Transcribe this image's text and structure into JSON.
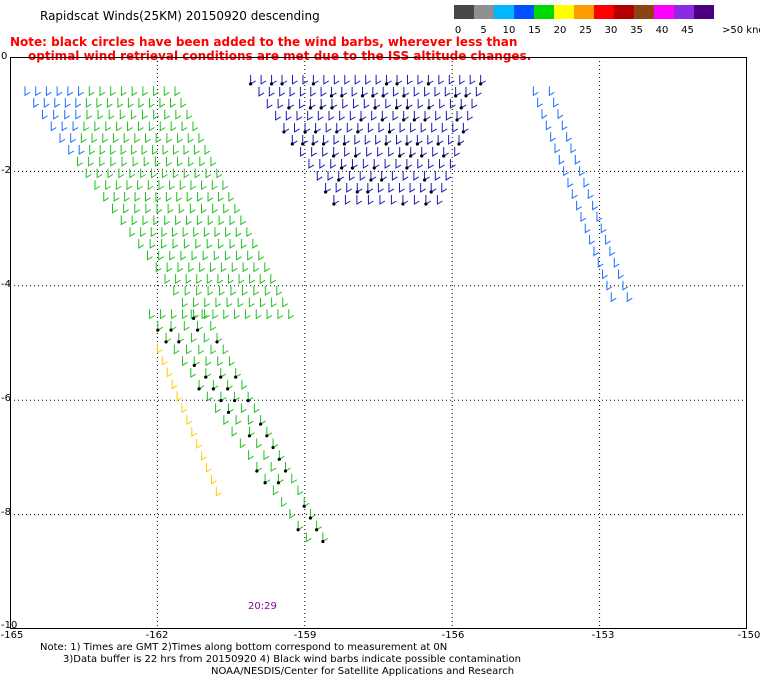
{
  "title": "Rapidscat Winds(25KM) 20150920 descending",
  "note_line1": "Note: black circles have been added to the wind barbs, wherever less than",
  "note_line2": "optimal wind retrieval conditions are met due to the ISS altitude changes.",
  "legend": {
    "labels": [
      "0",
      "5",
      "10",
      "15",
      "20",
      "25",
      "30",
      "35",
      "40",
      "45",
      ">50 knots"
    ],
    "colors": [
      "#474747",
      "#8f8f8f",
      "#00b6ff",
      "#0050ff",
      "#00d900",
      "#ffff00",
      "#ff9c00",
      "#ff0000",
      "#b30000",
      "#8b4513",
      "#ff00ff",
      "#8a2be2",
      "#4b0082"
    ]
  },
  "axes": {
    "y_ticks": [
      "0",
      "-2",
      "-4",
      "-6",
      "-8",
      "-10"
    ],
    "x_ticks": [
      "-165",
      "-162",
      "-159",
      "-156",
      "-153",
      "-150"
    ]
  },
  "map_data": {
    "lon_range": [
      -165,
      -150
    ],
    "lat_range": [
      -10,
      0
    ],
    "swaths": [
      {
        "name": "green-swath",
        "color": "#21c021",
        "lon_start": -165.0,
        "lon_end": -161.5,
        "lat_start": -0.6,
        "lat_end": -4.5
      },
      {
        "name": "blue-swath",
        "color": "#1a1ab0",
        "lon_start": -160.0,
        "lon_end": -155.0,
        "lat_start": -0.4,
        "lat_end": -2.5
      },
      {
        "name": "tail-swath",
        "color": "#21c021",
        "lon_start": -161.6,
        "lon_end": -158.8,
        "lat_start": -4.5,
        "lat_end": -8.4
      },
      {
        "name": "arc-swath",
        "color": "#1a6fff",
        "lon_start": -155.0,
        "lon_end": -152.6,
        "lat_start": -0.6,
        "lat_end": -4.2
      },
      {
        "name": "yellow-swath",
        "color": "#ffcc00",
        "lon_start": -162.0,
        "lon_end": -160.8,
        "lat_start": -5.1,
        "lat_end": -7.6
      }
    ]
  },
  "time_label": "20:29",
  "footer": {
    "line1": "Note: 1) Times are GMT 2)Times along bottom correspond to measurement at 0N",
    "line2": "3)Data buffer is 22 hrs from 20150920 4) Black wind barbs indicate possible contamination",
    "line3": "NOAA/NESDIS/Center for Satellite Applications and Research"
  }
}
